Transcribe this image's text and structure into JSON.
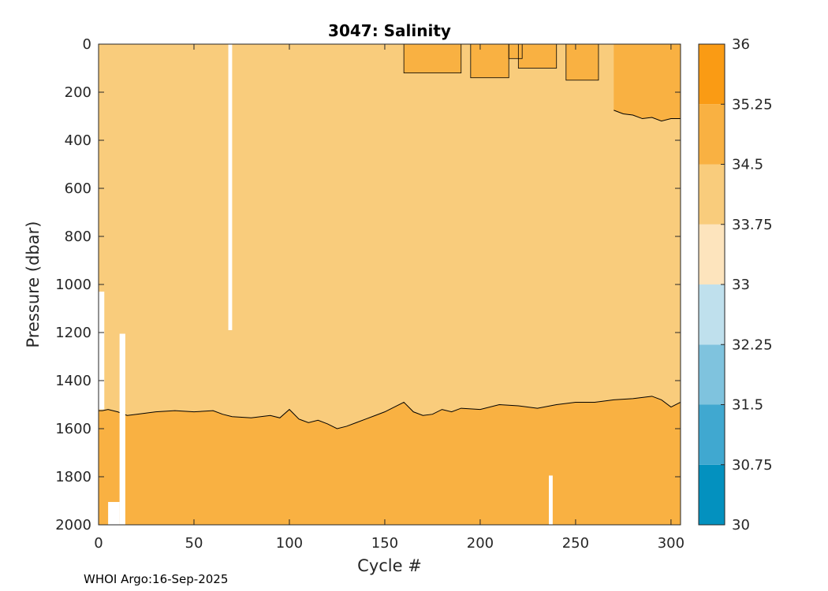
{
  "chart_data": {
    "type": "heatmap",
    "title": "3047:  Salinity",
    "xlabel": "Cycle #",
    "ylabel": "Pressure (dbar)",
    "xlim": [
      0,
      305
    ],
    "ylim": [
      0,
      2000
    ],
    "y_reversed": true,
    "x_ticks": [
      0,
      50,
      100,
      150,
      200,
      250,
      300
    ],
    "y_ticks": [
      0,
      200,
      400,
      600,
      800,
      1000,
      1200,
      1400,
      1600,
      1800,
      2000
    ],
    "colorbar": {
      "levels": [
        30,
        30.75,
        31.5,
        32.25,
        33,
        33.75,
        34.5,
        35.25,
        36
      ],
      "tick_labels": [
        "30",
        "30.75",
        "31.5",
        "32.25",
        "33",
        "33.75",
        "34.5",
        "35.25",
        "36"
      ],
      "colors": [
        "#0391bf",
        "#40a8d0",
        "#7fc3de",
        "#bfe0ed",
        "#fde4bd",
        "#f9cc7c",
        "#f9b142",
        "#fa9b14"
      ]
    },
    "regions": [
      {
        "name": "34.5-35.25 deep layer",
        "salinity_band": [
          34.5,
          35.25
        ],
        "pressure_from_contour": "34.5 contour",
        "pressure_to": 2000
      },
      {
        "name": "33.75-34.5 intermediate layer",
        "salinity_band": [
          33.75,
          34.5
        ],
        "pressure_from": 0,
        "pressure_to": "34.5 contour"
      },
      {
        "name": "34.5-35.25 surface patches",
        "salinity_band": [
          34.5,
          35.25
        ],
        "cycle_range": [
          155,
          305
        ],
        "pressure_range": [
          0,
          300
        ]
      }
    ],
    "contour_34_5_deep": {
      "x": [
        2,
        5,
        10,
        15,
        20,
        30,
        40,
        50,
        60,
        65,
        70,
        80,
        90,
        95,
        100,
        105,
        110,
        115,
        120,
        125,
        130,
        135,
        140,
        145,
        150,
        155,
        160,
        165,
        170,
        175,
        180,
        185,
        190,
        200,
        210,
        220,
        230,
        240,
        250,
        260,
        270,
        280,
        290,
        295,
        300,
        305
      ],
      "y": [
        1525,
        1520,
        1530,
        1545,
        1540,
        1530,
        1525,
        1530,
        1525,
        1540,
        1550,
        1555,
        1545,
        1555,
        1520,
        1560,
        1575,
        1565,
        1580,
        1600,
        1590,
        1575,
        1560,
        1545,
        1530,
        1510,
        1490,
        1530,
        1545,
        1540,
        1520,
        1530,
        1515,
        1520,
        1500,
        1505,
        1515,
        1500,
        1490,
        1490,
        1480,
        1475,
        1465,
        1480,
        1510,
        1490
      ]
    },
    "contour_34_5_upper_eastern": {
      "x": [
        270,
        275,
        280,
        285,
        290,
        295,
        300,
        305
      ],
      "y": [
        275,
        290,
        295,
        310,
        305,
        320,
        310,
        310
      ]
    },
    "data_gaps": [
      {
        "cycle_range": [
          0,
          3
        ],
        "pressure_range": [
          1030,
          1520
        ]
      },
      {
        "cycle_range": [
          68,
          70
        ],
        "pressure_range": [
          0,
          1190
        ]
      },
      {
        "cycle_range": [
          5,
          11
        ],
        "pressure_range": [
          1905,
          2000
        ]
      },
      {
        "cycle_range": [
          11,
          14
        ],
        "pressure_range": [
          1205,
          2000
        ]
      },
      {
        "cycle_range": [
          236,
          238
        ],
        "pressure_range": [
          1795,
          2000
        ]
      }
    ]
  },
  "footer": {
    "text": "WHOI Argo:16-Sep-2025"
  }
}
